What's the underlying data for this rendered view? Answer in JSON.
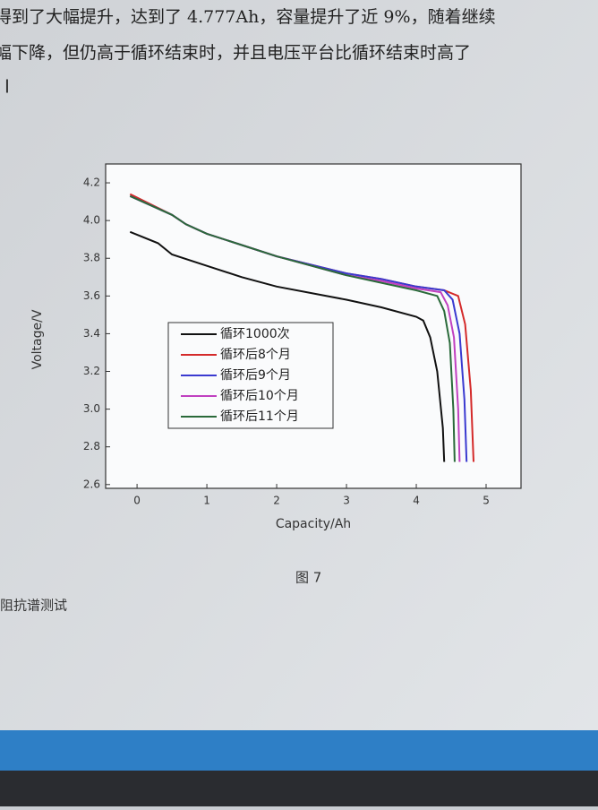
{
  "document": {
    "lines": [
      "得到了大幅提升，达到了 4.777Ah，容量提升了近 9%，随着继续",
      "幅下降，但仍高于循环结束时，并且电压平台比循环结束时高了"
    ],
    "caption": "图 7",
    "heading": "阻抗谱测试"
  },
  "chart_data": {
    "type": "line",
    "x_label": "Capacity/Ah",
    "y_label": "Voltage/V",
    "xlim": [
      -0.45,
      5.5
    ],
    "ylim": [
      2.58,
      4.3
    ],
    "xticks": [
      0,
      1,
      2,
      3,
      4,
      5
    ],
    "yticks": [
      {
        "value": 2.6,
        "label": "2.6"
      },
      {
        "value": 2.8,
        "label": "2.8"
      },
      {
        "value": 3.0,
        "label": "3.0"
      },
      {
        "value": 3.2,
        "label": "3.2"
      },
      {
        "value": 3.4,
        "label": "3.4"
      },
      {
        "value": 3.6,
        "label": "3.6"
      },
      {
        "value": 3.8,
        "label": "3.8"
      },
      {
        "value": 4.0,
        "label": "4.0"
      },
      {
        "value": 4.2,
        "label": "4.2"
      }
    ],
    "series": [
      {
        "name": "循环1000次",
        "color": "#111111",
        "x": [
          -0.1,
          0.3,
          0.5,
          1,
          1.5,
          2,
          3,
          3.5,
          4,
          4.1,
          4.2,
          4.3,
          4.38,
          4.4
        ],
        "values": [
          3.94,
          3.88,
          3.82,
          3.76,
          3.7,
          3.65,
          3.58,
          3.54,
          3.49,
          3.47,
          3.38,
          3.2,
          2.9,
          2.72
        ]
      },
      {
        "name": "循环后8个月",
        "color": "#d42a2a",
        "x": [
          -0.1,
          0.5,
          0.7,
          1,
          1.5,
          2,
          3,
          3.5,
          4,
          4.4,
          4.6,
          4.7,
          4.78,
          4.82
        ],
        "values": [
          4.14,
          4.03,
          3.98,
          3.93,
          3.87,
          3.81,
          3.72,
          3.69,
          3.65,
          3.63,
          3.6,
          3.45,
          3.1,
          2.72
        ]
      },
      {
        "name": "循环后9个月",
        "color": "#3a3ad0",
        "x": [
          -0.1,
          0.5,
          0.7,
          1,
          1.5,
          2,
          3,
          3.5,
          4,
          4.4,
          4.52,
          4.62,
          4.69,
          4.72
        ],
        "values": [
          4.13,
          4.03,
          3.98,
          3.93,
          3.87,
          3.81,
          3.72,
          3.69,
          3.65,
          3.63,
          3.58,
          3.4,
          3.05,
          2.72
        ]
      },
      {
        "name": "循环后10个月",
        "color": "#c040c0",
        "x": [
          -0.1,
          0.5,
          0.7,
          1,
          1.5,
          2,
          3,
          3.5,
          4,
          4.35,
          4.45,
          4.54,
          4.6,
          4.62
        ],
        "values": [
          4.13,
          4.03,
          3.98,
          3.93,
          3.87,
          3.81,
          3.71,
          3.68,
          3.64,
          3.62,
          3.55,
          3.38,
          3.0,
          2.72
        ]
      },
      {
        "name": "循环后11个月",
        "color": "#2a6a3a",
        "x": [
          -0.1,
          0.5,
          0.7,
          1,
          1.5,
          2,
          3,
          3.5,
          4,
          4.3,
          4.4,
          4.48,
          4.53,
          4.55
        ],
        "values": [
          4.13,
          4.03,
          3.98,
          3.93,
          3.87,
          3.81,
          3.71,
          3.67,
          3.63,
          3.6,
          3.52,
          3.35,
          3.0,
          2.72
        ]
      }
    ]
  }
}
